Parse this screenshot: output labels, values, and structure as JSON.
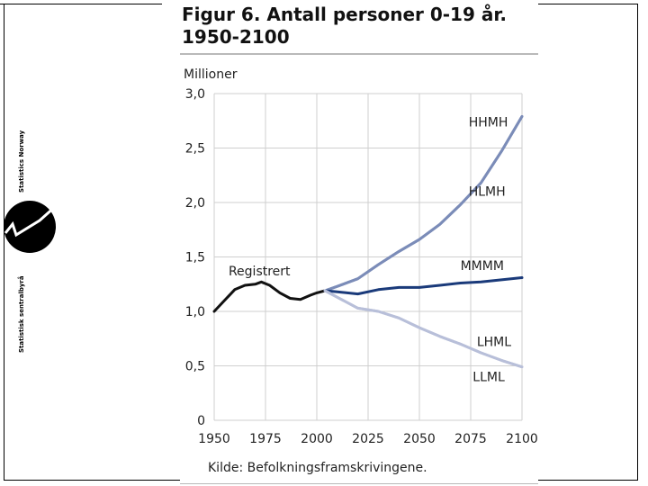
{
  "title_line1": "Figur 6. Antall personer 0-19 år.",
  "title_line2": "1950-2100",
  "source": "Kilde: Befolkningsframskrivingene.",
  "logo": {
    "text_top": "Statistics Norway",
    "text_bottom": "Statistisk sentralbyrå"
  },
  "chart_data": {
    "type": "line",
    "ylabel": "Millioner",
    "xlim": [
      1950,
      2100
    ],
    "ylim": [
      0,
      3.0
    ],
    "x_ticks": [
      "1950",
      "1975",
      "2000",
      "2025",
      "2050",
      "2075",
      "2100"
    ],
    "x_tick_values": [
      1950,
      1975,
      2000,
      2025,
      2050,
      2075,
      2100
    ],
    "y_ticks": [
      "0",
      "0,5",
      "1,0",
      "1,5",
      "2,0",
      "2,5",
      "3,0"
    ],
    "y_tick_values": [
      0,
      0.5,
      1.0,
      1.5,
      2.0,
      2.5,
      3.0
    ],
    "grid": "horizontal",
    "colors": {
      "registrert": "#111111",
      "high": "#7b8cb8",
      "medium": "#1a3a7a",
      "low": "#b8bfd9"
    },
    "series": [
      {
        "name": "Registrert",
        "color_key": "registrert",
        "x": [
          1950,
          1955,
          1960,
          1965,
          1970,
          1973,
          1977,
          1982,
          1987,
          1992,
          1997,
          2000,
          2004
        ],
        "y": [
          1.0,
          1.1,
          1.2,
          1.24,
          1.25,
          1.27,
          1.24,
          1.17,
          1.12,
          1.11,
          1.15,
          1.17,
          1.19
        ]
      },
      {
        "name": "HHMH",
        "color_key": "high",
        "x": [
          2004,
          2010,
          2020,
          2030,
          2040,
          2050,
          2060,
          2070,
          2080,
          2090,
          2100
        ],
        "y": [
          1.19,
          1.23,
          1.3,
          1.43,
          1.55,
          1.66,
          1.8,
          1.98,
          2.18,
          2.47,
          2.79
        ]
      },
      {
        "name": "HLMH",
        "color_key": "high",
        "x": [
          2004,
          2010,
          2020,
          2030,
          2040,
          2050,
          2060,
          2070,
          2080,
          2090,
          2100
        ],
        "y": [
          1.19,
          1.23,
          1.3,
          1.43,
          1.55,
          1.66,
          1.8,
          1.98,
          2.18,
          2.47,
          2.79
        ]
      },
      {
        "name": "MMMM",
        "color_key": "medium",
        "x": [
          2004,
          2010,
          2020,
          2030,
          2040,
          2050,
          2060,
          2070,
          2080,
          2090,
          2100
        ],
        "y": [
          1.19,
          1.18,
          1.16,
          1.2,
          1.22,
          1.22,
          1.24,
          1.26,
          1.27,
          1.29,
          1.31
        ]
      },
      {
        "name": "LHML",
        "color_key": "low",
        "x": [
          2004,
          2010,
          2020,
          2030,
          2040,
          2050,
          2060,
          2070,
          2080,
          2090,
          2100
        ],
        "y": [
          1.19,
          1.13,
          1.03,
          1.0,
          0.94,
          0.85,
          0.77,
          0.7,
          0.62,
          0.55,
          0.49
        ]
      },
      {
        "name": "LLML",
        "color_key": "low",
        "x": [
          2004,
          2010,
          2020,
          2030,
          2040,
          2050,
          2060,
          2070,
          2080,
          2090,
          2100
        ],
        "y": [
          1.19,
          1.13,
          1.03,
          1.0,
          0.94,
          0.85,
          0.77,
          0.7,
          0.62,
          0.55,
          0.49
        ]
      }
    ],
    "annotations": [
      {
        "text": "Registrert",
        "x": 1957,
        "y": 1.33
      },
      {
        "text": "HHMH",
        "x": 2074,
        "y": 2.7
      },
      {
        "text": "HLMH",
        "x": 2074,
        "y": 2.06
      },
      {
        "text": "MMMM",
        "x": 2070,
        "y": 1.38
      },
      {
        "text": "LHML",
        "x": 2078,
        "y": 0.68
      },
      {
        "text": "LLML",
        "x": 2076,
        "y": 0.36
      }
    ]
  }
}
